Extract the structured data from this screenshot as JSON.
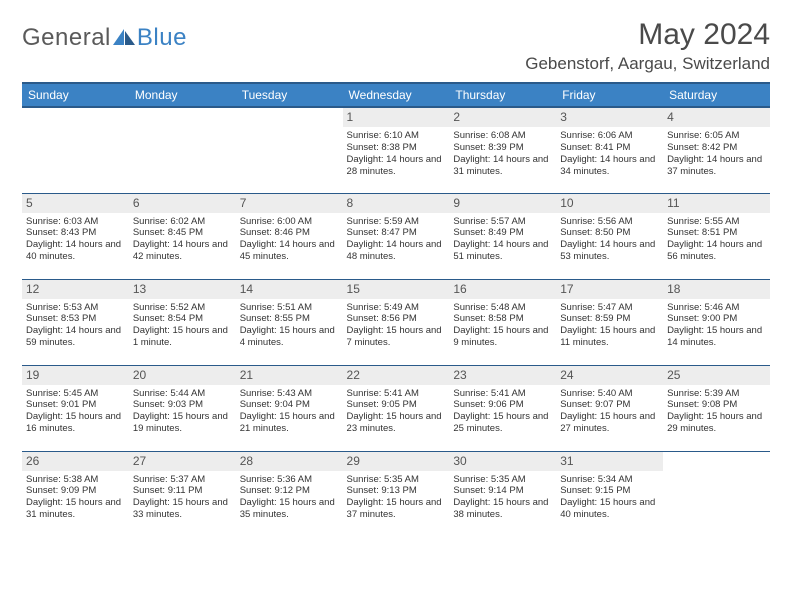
{
  "logo": {
    "text1": "General",
    "text2": "Blue"
  },
  "title": "May 2024",
  "location": "Gebenstorf, Aargau, Switzerland",
  "colors": {
    "header_bg": "#3b82c4",
    "header_border": "#2a5a8a",
    "daynum_bg": "#ededed",
    "text": "#333333",
    "title_text": "#4a4a4a"
  },
  "weekdays": [
    "Sunday",
    "Monday",
    "Tuesday",
    "Wednesday",
    "Thursday",
    "Friday",
    "Saturday"
  ],
  "weeks": [
    [
      null,
      null,
      null,
      {
        "n": "1",
        "sr": "Sunrise: 6:10 AM",
        "ss": "Sunset: 8:38 PM",
        "dl": "Daylight: 14 hours and 28 minutes."
      },
      {
        "n": "2",
        "sr": "Sunrise: 6:08 AM",
        "ss": "Sunset: 8:39 PM",
        "dl": "Daylight: 14 hours and 31 minutes."
      },
      {
        "n": "3",
        "sr": "Sunrise: 6:06 AM",
        "ss": "Sunset: 8:41 PM",
        "dl": "Daylight: 14 hours and 34 minutes."
      },
      {
        "n": "4",
        "sr": "Sunrise: 6:05 AM",
        "ss": "Sunset: 8:42 PM",
        "dl": "Daylight: 14 hours and 37 minutes."
      }
    ],
    [
      {
        "n": "5",
        "sr": "Sunrise: 6:03 AM",
        "ss": "Sunset: 8:43 PM",
        "dl": "Daylight: 14 hours and 40 minutes."
      },
      {
        "n": "6",
        "sr": "Sunrise: 6:02 AM",
        "ss": "Sunset: 8:45 PM",
        "dl": "Daylight: 14 hours and 42 minutes."
      },
      {
        "n": "7",
        "sr": "Sunrise: 6:00 AM",
        "ss": "Sunset: 8:46 PM",
        "dl": "Daylight: 14 hours and 45 minutes."
      },
      {
        "n": "8",
        "sr": "Sunrise: 5:59 AM",
        "ss": "Sunset: 8:47 PM",
        "dl": "Daylight: 14 hours and 48 minutes."
      },
      {
        "n": "9",
        "sr": "Sunrise: 5:57 AM",
        "ss": "Sunset: 8:49 PM",
        "dl": "Daylight: 14 hours and 51 minutes."
      },
      {
        "n": "10",
        "sr": "Sunrise: 5:56 AM",
        "ss": "Sunset: 8:50 PM",
        "dl": "Daylight: 14 hours and 53 minutes."
      },
      {
        "n": "11",
        "sr": "Sunrise: 5:55 AM",
        "ss": "Sunset: 8:51 PM",
        "dl": "Daylight: 14 hours and 56 minutes."
      }
    ],
    [
      {
        "n": "12",
        "sr": "Sunrise: 5:53 AM",
        "ss": "Sunset: 8:53 PM",
        "dl": "Daylight: 14 hours and 59 minutes."
      },
      {
        "n": "13",
        "sr": "Sunrise: 5:52 AM",
        "ss": "Sunset: 8:54 PM",
        "dl": "Daylight: 15 hours and 1 minute."
      },
      {
        "n": "14",
        "sr": "Sunrise: 5:51 AM",
        "ss": "Sunset: 8:55 PM",
        "dl": "Daylight: 15 hours and 4 minutes."
      },
      {
        "n": "15",
        "sr": "Sunrise: 5:49 AM",
        "ss": "Sunset: 8:56 PM",
        "dl": "Daylight: 15 hours and 7 minutes."
      },
      {
        "n": "16",
        "sr": "Sunrise: 5:48 AM",
        "ss": "Sunset: 8:58 PM",
        "dl": "Daylight: 15 hours and 9 minutes."
      },
      {
        "n": "17",
        "sr": "Sunrise: 5:47 AM",
        "ss": "Sunset: 8:59 PM",
        "dl": "Daylight: 15 hours and 11 minutes."
      },
      {
        "n": "18",
        "sr": "Sunrise: 5:46 AM",
        "ss": "Sunset: 9:00 PM",
        "dl": "Daylight: 15 hours and 14 minutes."
      }
    ],
    [
      {
        "n": "19",
        "sr": "Sunrise: 5:45 AM",
        "ss": "Sunset: 9:01 PM",
        "dl": "Daylight: 15 hours and 16 minutes."
      },
      {
        "n": "20",
        "sr": "Sunrise: 5:44 AM",
        "ss": "Sunset: 9:03 PM",
        "dl": "Daylight: 15 hours and 19 minutes."
      },
      {
        "n": "21",
        "sr": "Sunrise: 5:43 AM",
        "ss": "Sunset: 9:04 PM",
        "dl": "Daylight: 15 hours and 21 minutes."
      },
      {
        "n": "22",
        "sr": "Sunrise: 5:41 AM",
        "ss": "Sunset: 9:05 PM",
        "dl": "Daylight: 15 hours and 23 minutes."
      },
      {
        "n": "23",
        "sr": "Sunrise: 5:41 AM",
        "ss": "Sunset: 9:06 PM",
        "dl": "Daylight: 15 hours and 25 minutes."
      },
      {
        "n": "24",
        "sr": "Sunrise: 5:40 AM",
        "ss": "Sunset: 9:07 PM",
        "dl": "Daylight: 15 hours and 27 minutes."
      },
      {
        "n": "25",
        "sr": "Sunrise: 5:39 AM",
        "ss": "Sunset: 9:08 PM",
        "dl": "Daylight: 15 hours and 29 minutes."
      }
    ],
    [
      {
        "n": "26",
        "sr": "Sunrise: 5:38 AM",
        "ss": "Sunset: 9:09 PM",
        "dl": "Daylight: 15 hours and 31 minutes."
      },
      {
        "n": "27",
        "sr": "Sunrise: 5:37 AM",
        "ss": "Sunset: 9:11 PM",
        "dl": "Daylight: 15 hours and 33 minutes."
      },
      {
        "n": "28",
        "sr": "Sunrise: 5:36 AM",
        "ss": "Sunset: 9:12 PM",
        "dl": "Daylight: 15 hours and 35 minutes."
      },
      {
        "n": "29",
        "sr": "Sunrise: 5:35 AM",
        "ss": "Sunset: 9:13 PM",
        "dl": "Daylight: 15 hours and 37 minutes."
      },
      {
        "n": "30",
        "sr": "Sunrise: 5:35 AM",
        "ss": "Sunset: 9:14 PM",
        "dl": "Daylight: 15 hours and 38 minutes."
      },
      {
        "n": "31",
        "sr": "Sunrise: 5:34 AM",
        "ss": "Sunset: 9:15 PM",
        "dl": "Daylight: 15 hours and 40 minutes."
      },
      null
    ]
  ]
}
